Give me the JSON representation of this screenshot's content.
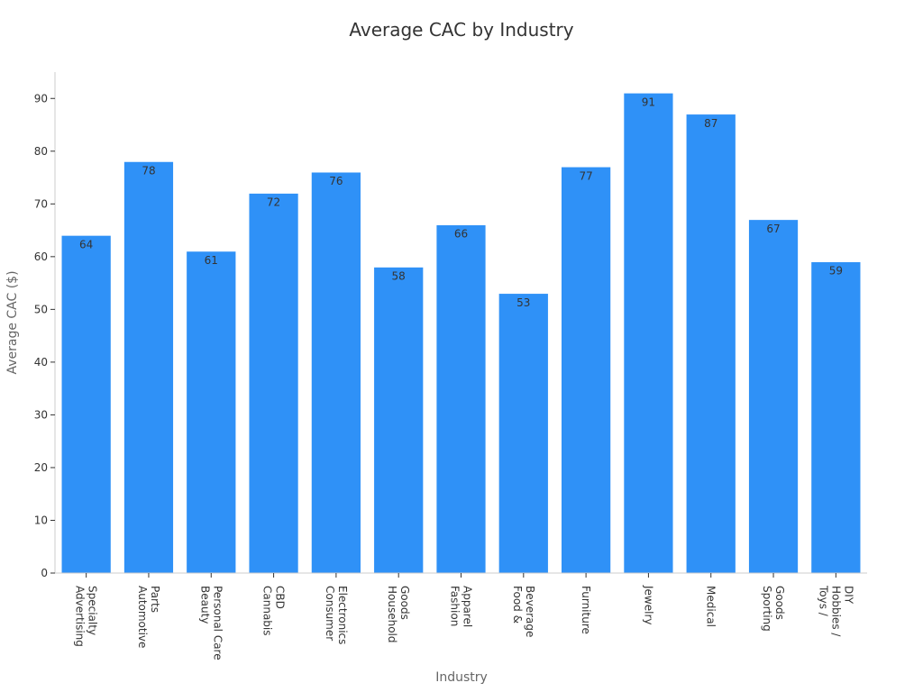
{
  "chart_data": {
    "type": "bar",
    "title": "Average CAC by Industry",
    "xlabel": "Industry",
    "ylabel": "Average CAC ($)",
    "ylim": [
      0,
      95
    ],
    "yticks": [
      0,
      10,
      20,
      30,
      40,
      50,
      60,
      70,
      80,
      90
    ],
    "grid": false,
    "bar_color": "#2f91f7",
    "categories": [
      [
        "Advertising",
        "Specialty"
      ],
      [
        "Automotive",
        "Parts"
      ],
      [
        "Beauty",
        "Personal Care"
      ],
      [
        "Cannabis",
        "CBD"
      ],
      [
        "Consumer",
        "Electronics"
      ],
      [
        "Household",
        "Goods"
      ],
      [
        "Fashion",
        "Apparel"
      ],
      [
        "Food &",
        "Beverage"
      ],
      [
        "Furniture"
      ],
      [
        "Jewelry"
      ],
      [
        "Medical"
      ],
      [
        "Sporting",
        "Goods"
      ],
      [
        "Toys /",
        "Hobbies /",
        "DIY"
      ]
    ],
    "values": [
      64,
      78,
      61,
      72,
      76,
      58,
      66,
      53,
      77,
      91,
      87,
      67,
      59
    ]
  }
}
